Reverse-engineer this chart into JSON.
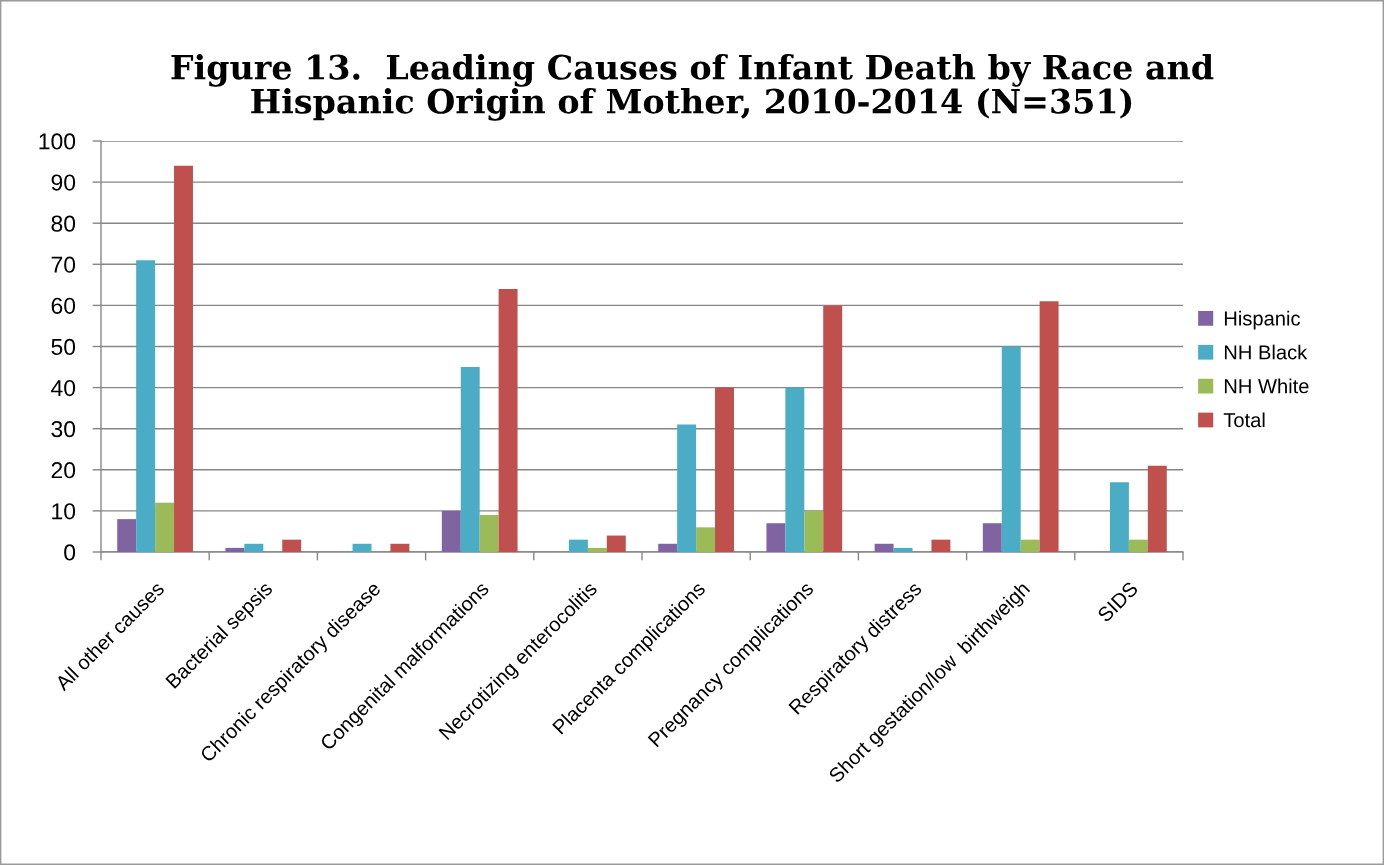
{
  "chart_data": {
    "type": "bar",
    "title": "Figure 13.  Leading Causes of Infant Death by Race and\nHispanic Origin of Mother, 2010-2014 (N=351)",
    "categories": [
      "All other causes",
      "Bacterial sepsis",
      "Chronic respiratory disease",
      "Congenital malformations",
      "Necrotizing enterocolitis",
      "Placenta complications",
      "Pregnancy complications",
      "Respiratory distress",
      "Short gestation/low  birthweigh",
      "SIDS"
    ],
    "series": [
      {
        "name": "Hispanic",
        "color": "#8064a2",
        "values": [
          8,
          1,
          null,
          10,
          null,
          2,
          7,
          2,
          7,
          null
        ]
      },
      {
        "name": "NH Black",
        "color": "#4bacc6",
        "values": [
          71,
          2,
          2,
          45,
          3,
          31,
          40,
          1,
          50,
          17
        ]
      },
      {
        "name": "NH White",
        "color": "#9bbb59",
        "values": [
          12,
          null,
          null,
          9,
          1,
          6,
          10,
          null,
          3,
          3
        ]
      },
      {
        "name": "Total",
        "color": "#c0504d",
        "values": [
          94,
          3,
          2,
          64,
          4,
          40,
          60,
          3,
          61,
          21
        ]
      }
    ],
    "ylim": [
      0,
      100
    ],
    "yticks": [
      0,
      10,
      20,
      30,
      40,
      50,
      60,
      70,
      80,
      90,
      100
    ],
    "grid": "y",
    "legend": "right"
  }
}
